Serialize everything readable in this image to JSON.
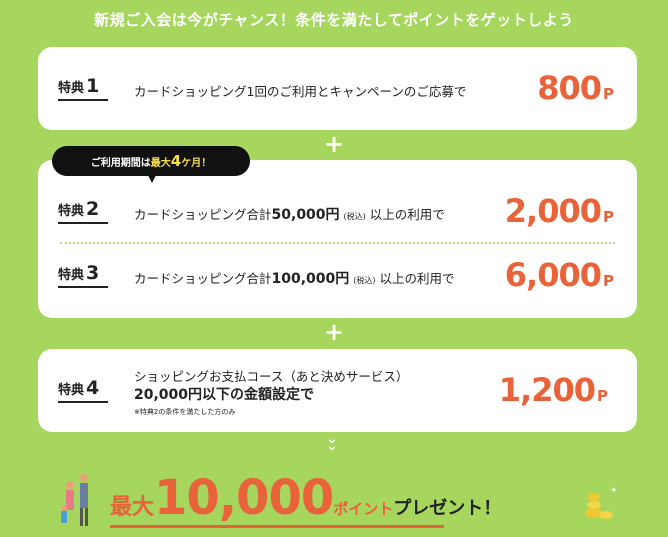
{
  "header": {
    "title": "新規ご入会は今がチャンス！条件を満たしてポイントをゲットしよう"
  },
  "bubble": {
    "prefix": "ご利用期間は",
    "highlight_a": "最大",
    "highlight_num": "4",
    "highlight_b": "ケ月！"
  },
  "benefits": [
    {
      "label": "特典",
      "num": "1",
      "desc": "カードショッピング1回のご利用とキャンペーンのご応募で",
      "points": "800",
      "unit": "P"
    },
    {
      "label": "特典",
      "num": "2",
      "desc_a": "カードショッピング合計",
      "amount": "50,000円",
      "tax": "(税込)",
      "desc_b": "以上の利用で",
      "points": "2,000",
      "unit": "P"
    },
    {
      "label": "特典",
      "num": "3",
      "desc_a": "カードショッピング合計",
      "amount": "100,000円",
      "tax": "(税込)",
      "desc_b": "以上の利用で",
      "points": "6,000",
      "unit": "P"
    },
    {
      "label": "特典",
      "num": "4",
      "line1": "ショッピングお支払コース（あと決めサービス）",
      "line2": "20,000円以下の金額設定で",
      "note": "※特典2の条件を満たした方のみ",
      "points": "1,200",
      "unit": "P"
    }
  ],
  "plus": "+",
  "total": {
    "prefix": "最大",
    "amount": "10,000",
    "points_word": "ポイント",
    "suffix": "プレゼント！"
  },
  "colors": {
    "background": "#a6d65d",
    "accent": "#e8623a",
    "card": "#ffffff"
  },
  "icons": [
    "plus-icon",
    "double-chevron-down-icon",
    "family-illustration-icon",
    "coins-icon"
  ]
}
